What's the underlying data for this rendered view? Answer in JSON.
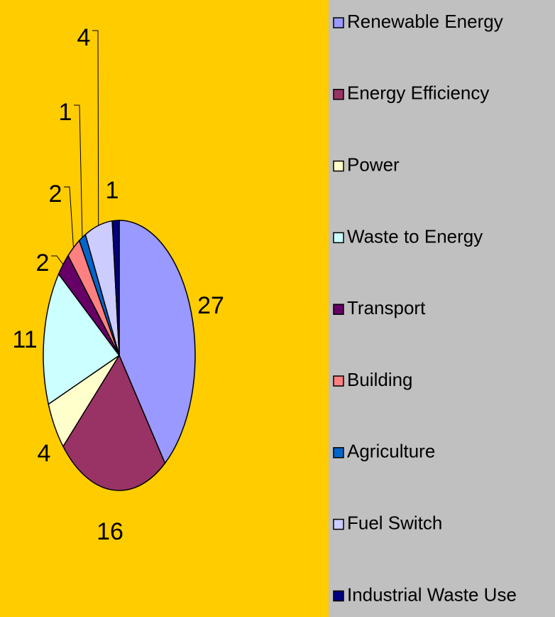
{
  "chart_data": {
    "type": "pie",
    "categories": [
      "Renewable Energy",
      "Energy Efficiency",
      "Power",
      "Waste to Energy",
      "Transport",
      "Building",
      "Agriculture",
      "Fuel Switch",
      "Industrial Waste Use"
    ],
    "values": [
      27,
      16,
      4,
      11,
      2,
      2,
      1,
      4,
      1
    ],
    "colors": [
      "#9999ff",
      "#993366",
      "#ffffcc",
      "#ccffff",
      "#660066",
      "#ff8080",
      "#0066cc",
      "#ccccff",
      "#000080"
    ],
    "legend": "right"
  }
}
